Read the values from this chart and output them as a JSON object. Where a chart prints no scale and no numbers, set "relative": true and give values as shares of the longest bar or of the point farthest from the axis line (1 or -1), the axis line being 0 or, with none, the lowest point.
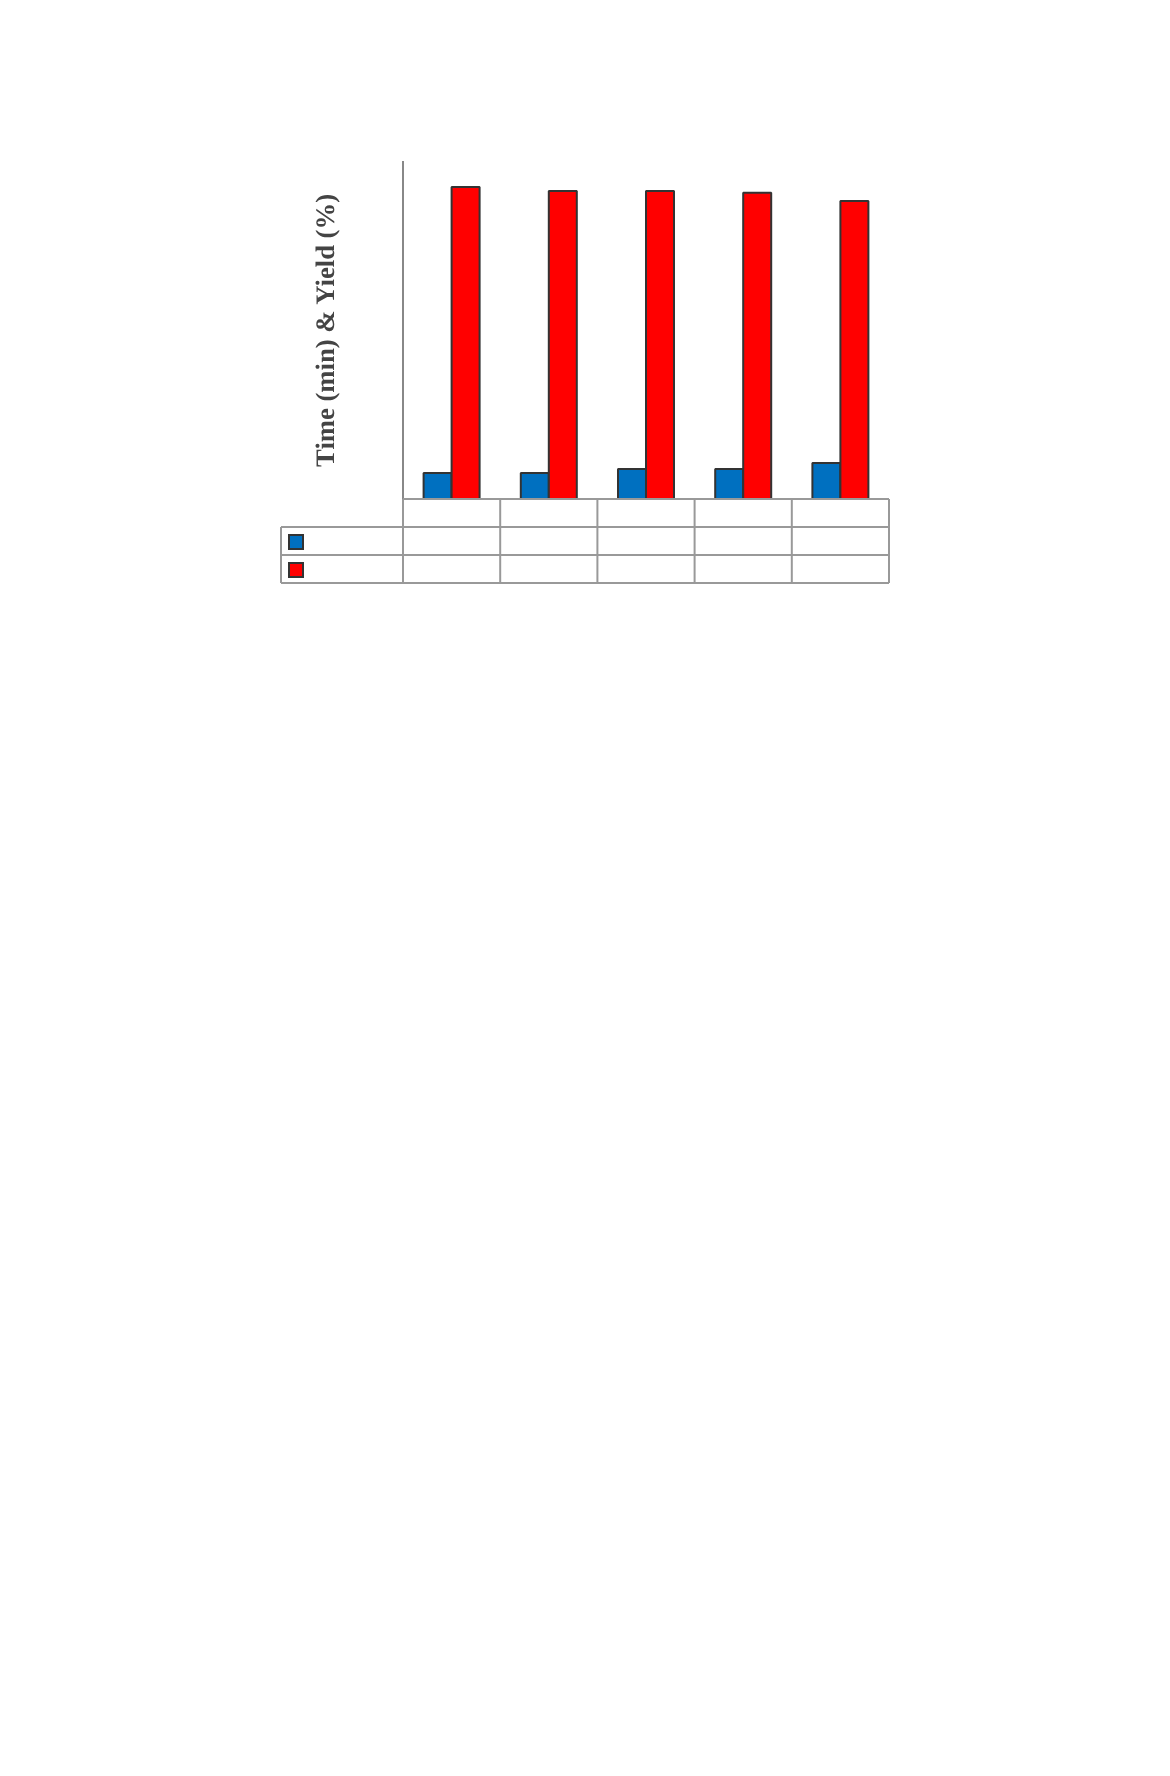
{
  "chart_data": {
    "type": "bar",
    "ylabel": "Time (min) & Yield (%)",
    "relative": true,
    "categories": [
      null,
      null,
      null,
      null,
      null
    ],
    "series": [
      {
        "color": "#0070c0",
        "values": [
          0.083,
          0.083,
          0.096,
          0.096,
          0.115
        ]
      },
      {
        "color": "#ff0000",
        "values": [
          1,
          0.987,
          0.987,
          0.981,
          0.955
        ]
      }
    ]
  }
}
